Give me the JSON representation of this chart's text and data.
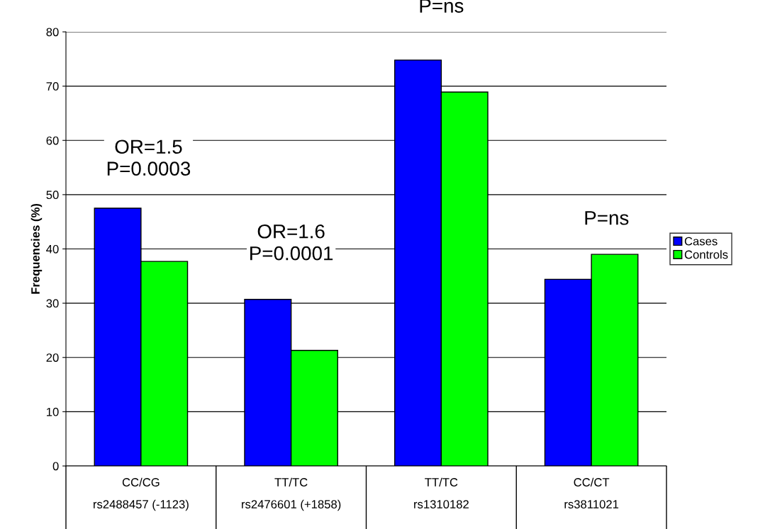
{
  "chart_data": {
    "type": "bar",
    "ylabel": "Frequencies (%)",
    "categories": [
      "CC/CG\n\nrs2488457 (-1123)",
      "TT/TC\n\nrs2476601 (+1858)",
      "TT/TC\n\nrs1310182",
      "CC/CT\n\nrs3811021"
    ],
    "series": [
      {
        "name": "Cases",
        "color": "#0000ff",
        "values": [
          47.5,
          30.7,
          74.8,
          34.4
        ]
      },
      {
        "name": "Controls",
        "color": "#00ff00",
        "values": [
          37.7,
          21.3,
          68.9,
          39.0
        ]
      }
    ],
    "ylim": [
      0,
      80
    ],
    "yticks": [
      0,
      10,
      20,
      30,
      40,
      50,
      60,
      70,
      80
    ],
    "grid": "y",
    "legend": "right",
    "annotations": [
      "OR=1.5\nP=0.0003",
      "OR=1.6\nP=0.0001",
      "P=ns",
      "P=ns"
    ]
  }
}
